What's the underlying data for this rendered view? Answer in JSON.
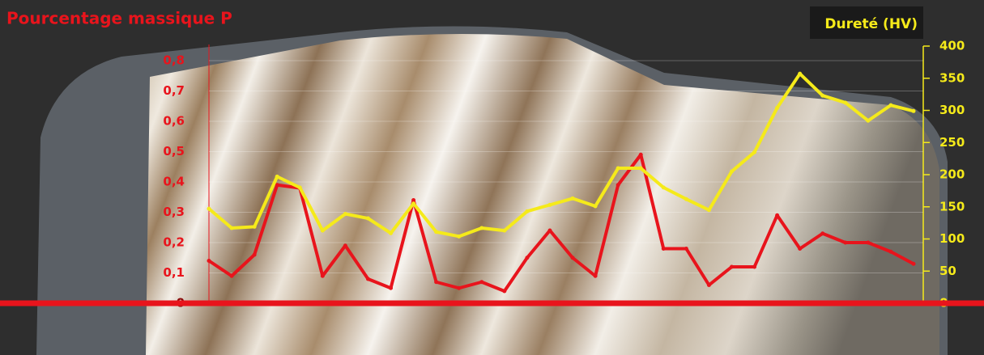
{
  "chart_data": {
    "type": "line",
    "title": "Pourcentage massique P",
    "y2_title": "Dureté (HV)",
    "categories": [
      null,
      null,
      null,
      null,
      null,
      null,
      null,
      null,
      null,
      null,
      null,
      null,
      null,
      null,
      null,
      null,
      null,
      null,
      null,
      null,
      null,
      null,
      null,
      null,
      null,
      null,
      null,
      null,
      null,
      null,
      null,
      null
    ],
    "series": [
      {
        "color": "#e8141c",
        "values": [
          0.14,
          0.09,
          0.16,
          0.39,
          0.38,
          0.09,
          0.19,
          0.08,
          0.05,
          0.34,
          0.07,
          0.05,
          0.07,
          0.04,
          0.15,
          0.24,
          0.15,
          0.09,
          0.39,
          0.49,
          0.18,
          0.18,
          0.06,
          0.12,
          0.12,
          0.29,
          0.18,
          0.23,
          0.2,
          0.2,
          0.17,
          0.13
        ]
      },
      {
        "color": "#f5ea1a",
        "axis": "y2",
        "values": [
          147,
          117,
          119,
          197,
          180,
          113,
          139,
          132,
          109,
          155,
          111,
          104,
          117,
          113,
          143,
          153,
          163,
          151,
          210,
          210,
          180,
          162,
          145,
          205,
          235,
          304,
          357,
          323,
          312,
          284,
          308,
          299
        ]
      }
    ],
    "ylim": [
      0,
      0.8
    ],
    "yticks": [
      0,
      {
        "value": 0.1,
        "label": "0,1"
      },
      {
        "value": 0.2,
        "label": "0,2"
      },
      {
        "value": 0.3,
        "label": "0,3"
      },
      {
        "value": 0.4,
        "label": "0,4"
      },
      {
        "value": 0.5,
        "label": "0,5"
      },
      {
        "value": 0.6,
        "label": "0,6"
      },
      {
        "value": 0.7,
        "label": "0,7"
      },
      {
        "value": 0.8,
        "label": "0,8"
      }
    ],
    "y2lim": [
      0,
      400
    ],
    "y2ticks": [
      0,
      50,
      100,
      150,
      200,
      250,
      300,
      350,
      400
    ]
  }
}
